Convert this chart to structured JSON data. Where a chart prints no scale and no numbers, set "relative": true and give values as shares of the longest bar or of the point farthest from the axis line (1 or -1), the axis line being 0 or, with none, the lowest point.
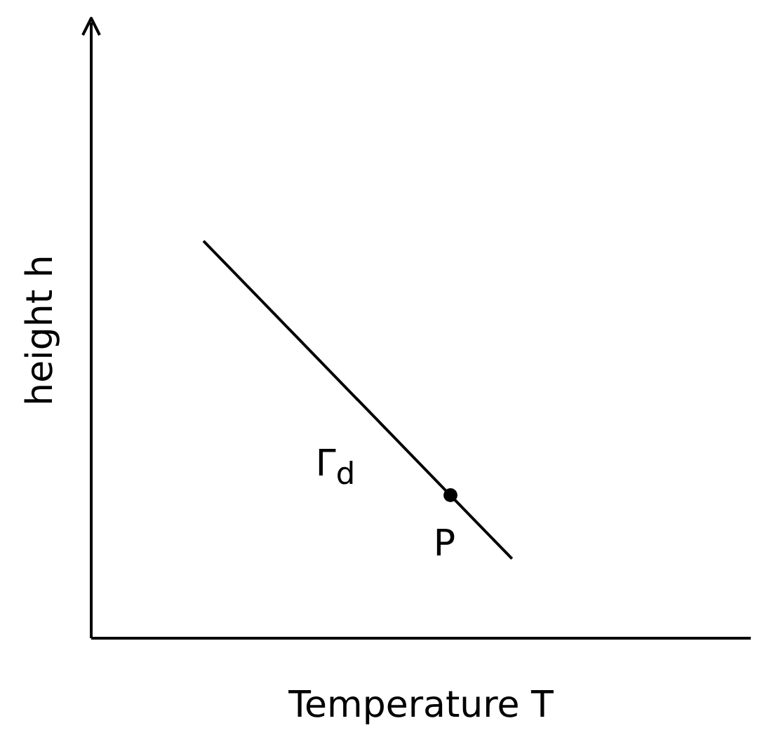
{
  "chart_data": {
    "type": "line",
    "relative": true,
    "xlabel": "Temperature T",
    "ylabel": "height h",
    "categories": [
      null,
      null,
      null,
      null,
      null,
      null
    ],
    "series": [
      {
        "color": "#000000",
        "marker": "none",
        "values": [
          1,
          0.84,
          0.68,
          0.52,
          0.36,
          0.2
        ]
      }
    ],
    "annotations": [
      "Γ$_{d}$",
      {
        "text": "P",
        "y": 0.36
      }
    ]
  }
}
